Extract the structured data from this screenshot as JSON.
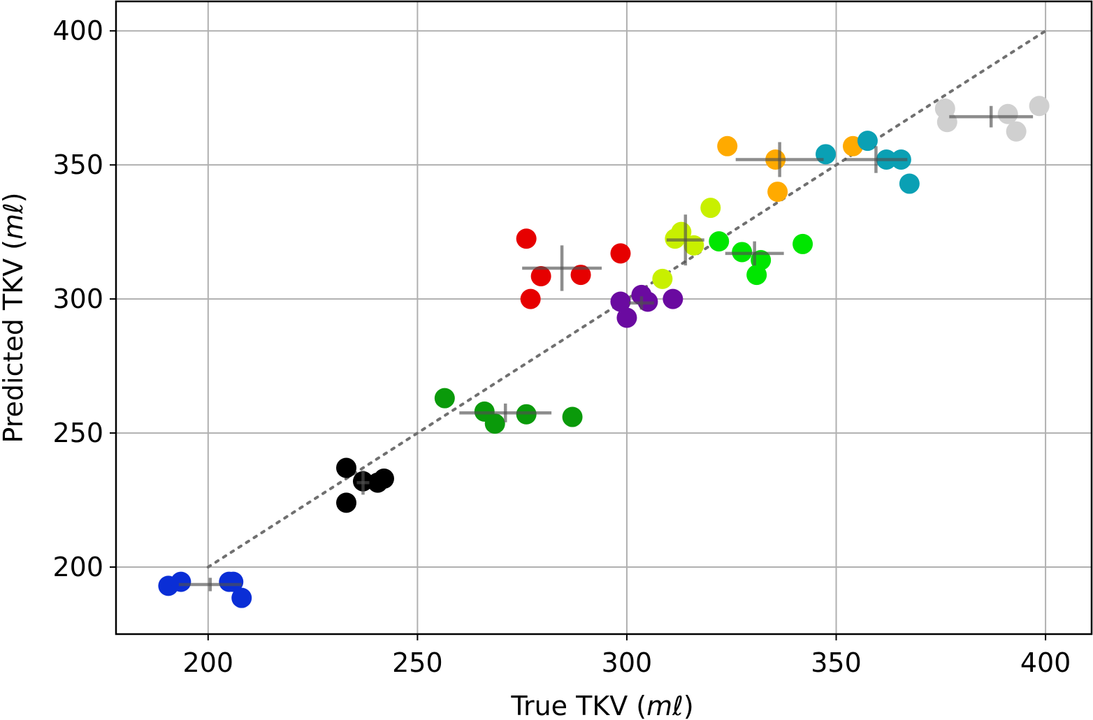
{
  "chart_data": {
    "type": "scatter",
    "title": "",
    "xlabel_prefix": "True TKV (",
    "xlabel_unit": "mℓ",
    "xlabel_suffix": ")",
    "ylabel_prefix": "Predicted TKV (",
    "ylabel_unit": "mℓ",
    "ylabel_suffix": ")",
    "xlim": [
      178,
      411
    ],
    "ylim": [
      175,
      411
    ],
    "xticks": [
      200,
      250,
      300,
      350,
      400
    ],
    "yticks": [
      200,
      250,
      300,
      350,
      400
    ],
    "grid": true,
    "identity_line": {
      "from": [
        200,
        200
      ],
      "to": [
        400,
        400
      ],
      "style": "dotted"
    },
    "series": [
      {
        "name": "blue",
        "color": "#0a2ed6",
        "x": [
          190.5,
          193.5,
          205,
          206,
          208
        ],
        "y": [
          193,
          194.5,
          194.5,
          194.5,
          188.5
        ],
        "errorbar": {
          "x": 200.5,
          "y": 193.5,
          "xerr": 7.5,
          "yerr": 2.5
        }
      },
      {
        "name": "black",
        "color": "#000000",
        "x": [
          233,
          233,
          237,
          240.5,
          242
        ],
        "y": [
          237,
          224,
          232,
          231.5,
          233
        ],
        "errorbar": {
          "x": 237,
          "y": 231.5,
          "xerr": 1.5,
          "yerr": 4.5
        }
      },
      {
        "name": "green",
        "color": "#0a9a0a",
        "x": [
          256.5,
          266,
          268.5,
          276,
          287
        ],
        "y": [
          263,
          258,
          253.5,
          257,
          256
        ],
        "errorbar": {
          "x": 271,
          "y": 257.5,
          "xerr": 11,
          "yerr": 3.5
        }
      },
      {
        "name": "red",
        "color": "#e60000",
        "x": [
          276,
          277,
          279.5,
          289,
          298.5
        ],
        "y": [
          322.5,
          300,
          308.5,
          309,
          317
        ],
        "errorbar": {
          "x": 284.5,
          "y": 311.5,
          "xerr": 9.5,
          "yerr": 8.5
        }
      },
      {
        "name": "purple",
        "color": "#6a0aa0",
        "x": [
          298.5,
          300,
          303.5,
          305,
          311
        ],
        "y": [
          299,
          293,
          301.5,
          299,
          300
        ],
        "errorbar": {
          "x": 303.5,
          "y": 298.5,
          "xerr": 3,
          "yerr": 2.5
        }
      },
      {
        "name": "yellow-green",
        "color": "#c8f000",
        "x": [
          308.5,
          311.5,
          313,
          316,
          320
        ],
        "y": [
          307.5,
          322.5,
          325,
          320,
          334
        ],
        "errorbar": {
          "x": 314,
          "y": 322,
          "xerr": 4.5,
          "yerr": 9.5
        }
      },
      {
        "name": "bright-green",
        "color": "#00e600",
        "x": [
          322,
          327.5,
          331,
          332,
          342
        ],
        "y": [
          321.5,
          317.5,
          309,
          314.5,
          320.5
        ],
        "errorbar": {
          "x": 330.5,
          "y": 317,
          "xerr": 7,
          "yerr": 4.5
        }
      },
      {
        "name": "orange",
        "color": "#ffaa00",
        "x": [
          324,
          335.5,
          336,
          354
        ],
        "y": [
          357,
          352,
          340,
          357
        ],
        "errorbar": {
          "x": 336.5,
          "y": 352,
          "xerr": 10.5,
          "yerr": 6.5
        }
      },
      {
        "name": "teal",
        "color": "#0aa0b4",
        "x": [
          347.5,
          357.5,
          362,
          365.5,
          367.5
        ],
        "y": [
          354,
          359,
          352,
          352,
          343
        ],
        "errorbar": {
          "x": 359.5,
          "y": 352,
          "xerr": 7.5,
          "yerr": 5
        }
      },
      {
        "name": "light-gray",
        "color": "#d0d0d0",
        "x": [
          376,
          376.5,
          391,
          393,
          398.5
        ],
        "y": [
          371,
          366,
          369,
          362.5,
          372
        ],
        "errorbar": {
          "x": 387,
          "y": 368,
          "xerr": 10,
          "yerr": 4
        }
      }
    ]
  }
}
